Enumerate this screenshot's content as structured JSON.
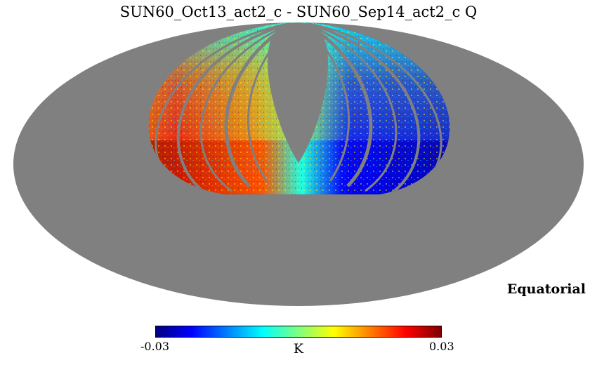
{
  "title": "SUN60_Oct13_act2_c - SUN60_Sep14_act2_c Q",
  "coordinate_system": "Equatorial",
  "projection": "mollweide",
  "colors": {
    "background": "#808080",
    "colormap": [
      "#00007f",
      "#0000ff",
      "#007fff",
      "#00ffff",
      "#7fff7f",
      "#ffff00",
      "#ff7f00",
      "#ff0000",
      "#7f0000"
    ]
  },
  "colorbar": {
    "min_label": "-0.03",
    "max_label": "0.03",
    "unit": "K",
    "min": -0.03,
    "max": 0.03
  }
}
